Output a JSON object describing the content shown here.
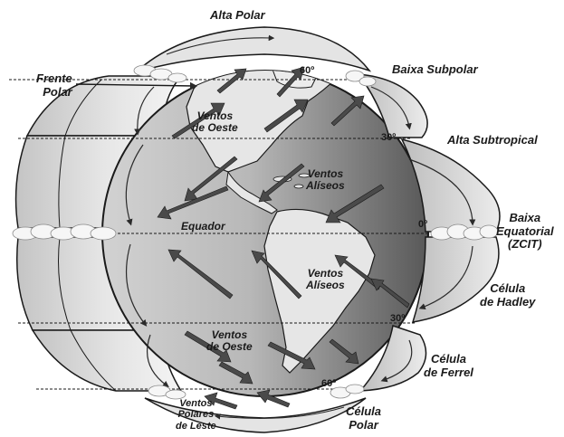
{
  "labels": {
    "alta_polar": "Alta Polar",
    "frente_polar": [
      "Frente",
      "Polar"
    ],
    "baixa_subpolar": "Baixa Subpolar",
    "alta_subtropical": "Alta Subtropical",
    "baixa_equatorial": [
      "Baixa",
      "Equatorial",
      "(ZCIT)"
    ],
    "celula_hadley": [
      "Célula",
      "de Hadley"
    ],
    "celula_ferrel": [
      "Célula",
      "de Ferrel"
    ],
    "celula_polar": [
      "Célula",
      "Polar"
    ],
    "ventos_oeste_norte": [
      "Ventos",
      "de Oeste"
    ],
    "ventos_oeste_sul": [
      "Ventos",
      "de Oeste"
    ],
    "ventos_aliseos_norte": [
      "Ventos",
      "Alíseos"
    ],
    "ventos_aliseos_sul": [
      "Ventos",
      "Alíseos"
    ],
    "equador": "Equador",
    "ventos_polares_leste": [
      "Ventos",
      "Polares",
      "de Leste"
    ],
    "lat_60_n": "60º",
    "lat_30_n": "30º",
    "lat_0": "0º",
    "lat_30_s": "30º",
    "lat_60_s": "60º"
  },
  "colors": {
    "ocean_light": "#cfcfcf",
    "ocean_dark": "#5a5a5a",
    "land": "#e6e6e6",
    "arrow": "#4a4a4a",
    "cell_fill": "#dcdcdc",
    "outline": "#1a1a1a"
  }
}
